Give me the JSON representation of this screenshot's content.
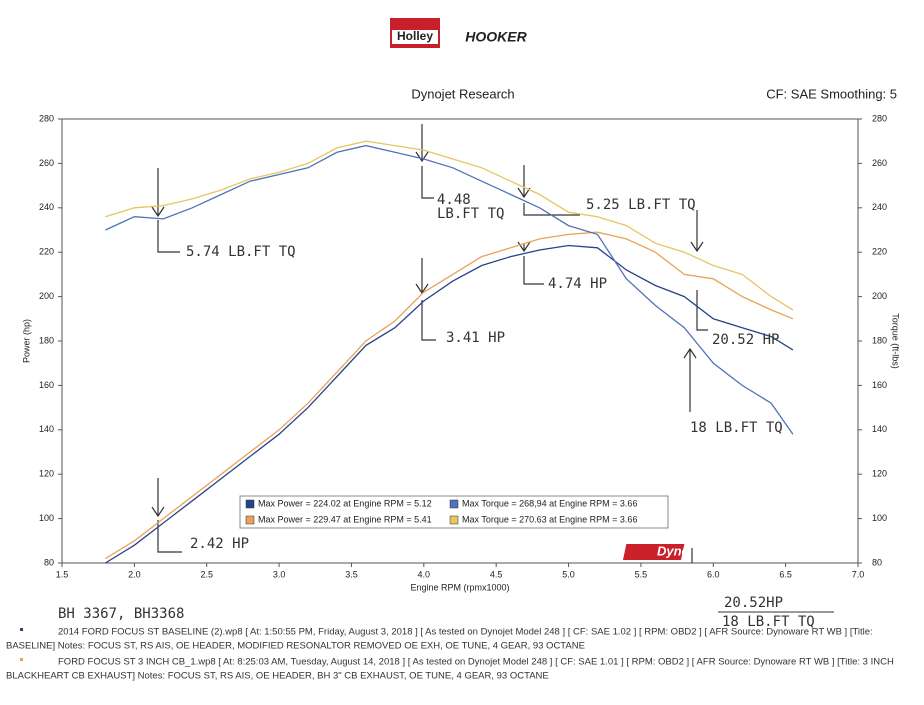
{
  "chart_data": {
    "type": "line",
    "logos": [
      "Holley",
      "HOOKER"
    ],
    "title": "Dynojet Research",
    "subtitle": "CF: SAE Smoothing: 5",
    "x_label": "Engine RPM (rpmx1000)",
    "y_label": "Power (hp)",
    "y2_label": "Torque (ft-lbs)",
    "brand": "Dynojet",
    "x": [
      1.8,
      2.0,
      2.2,
      2.4,
      2.6,
      2.8,
      3.0,
      3.2,
      3.4,
      3.6,
      3.8,
      4.0,
      4.2,
      4.4,
      4.6,
      4.8,
      5.0,
      5.2,
      5.4,
      5.6,
      5.8,
      6.0,
      6.2,
      6.4,
      6.55
    ],
    "series": [
      {
        "name": "Max Power = 224.02 at Engine RPM = 5.12",
        "color": "#26448a",
        "values": [
          80,
          88,
          98,
          108,
          118,
          128,
          138,
          150,
          164,
          178,
          186,
          198,
          207,
          214,
          218,
          221,
          223,
          222,
          212,
          205,
          200,
          190,
          186,
          182,
          176
        ]
      },
      {
        "name": "Max Power = 229.47 at Engine RPM = 5.41",
        "color": "#e9a257",
        "values": [
          82,
          90,
          100,
          110,
          120,
          130,
          140,
          152,
          166,
          180,
          189,
          202,
          210,
          218,
          222,
          226,
          228,
          229,
          226,
          220,
          210,
          208,
          200,
          194,
          190
        ]
      },
      {
        "name": "Max Torque = 268,94 at Engine RPM = 3.66",
        "color": "#4f73b8",
        "axis": "y2",
        "values": [
          230,
          236,
          235,
          240,
          246,
          252,
          255,
          258,
          265,
          268,
          265,
          262,
          258,
          252,
          246,
          240,
          232,
          228,
          208,
          196,
          186,
          170,
          160,
          152,
          138
        ]
      },
      {
        "name": "Max Torque = 270.63 at Engine RPM = 3.66",
        "color": "#e6c65e",
        "axis": "y2",
        "values": [
          236,
          240,
          241,
          244,
          248,
          253,
          256,
          260,
          267,
          270,
          268,
          266,
          262,
          258,
          252,
          246,
          238,
          236,
          232,
          224,
          220,
          214,
          210,
          200,
          194
        ]
      }
    ],
    "xlim": [
      1.5,
      7.0
    ],
    "xticks": [
      1.5,
      {
        "value": 2.0,
        "label": "2.0"
      },
      2.5,
      {
        "value": 3.0,
        "label": "3.0"
      },
      3.5,
      {
        "value": 4.0,
        "label": "4.0"
      },
      4.5,
      {
        "value": 5.0,
        "label": "5.0"
      },
      5.5,
      {
        "value": 6.0,
        "label": "6.0"
      },
      6.5,
      {
        "value": 7.0,
        "label": "7.0"
      }
    ],
    "ylim": [
      80,
      280
    ],
    "yticks": [
      80,
      100,
      120,
      140,
      160,
      180,
      200,
      220,
      240,
      260,
      280
    ],
    "y2lim": [
      80,
      280
    ],
    "y2ticks": [
      80,
      100,
      120,
      140,
      160,
      180,
      200,
      220,
      240,
      260,
      280
    ],
    "grid": false,
    "annotations": [
      "5.74 LB.FT TQ",
      "4.48",
      "LB.FT TQ",
      "5.25 LB.FT TQ",
      "4.74 HP",
      "3.41 HP",
      "2.42 HP",
      "20.52 HP",
      "18 LB.FT TQ"
    ],
    "handwritten_notes": [
      "BH 3367, BH3368",
      "20.52HP",
      "18 LB.FT TQ"
    ],
    "footer_notes": [
      "2014 FORD FOCUS ST BASELINE (2).wp8 [ At: 1:50:55 PM, Friday, August 3, 2018 ] [ As tested on Dynojet Model 248 ] [ CF: SAE 1.02 ] [ RPM: OBD2 ] [ AFR Source: Dynoware RT WB ] [Title:",
      "BASELINE]  Notes: FOCUS ST, RS AIS, OE HEADER, MODIFIED RESONALTOR REMOVED OE EXH, OE TUNE, 4 GEAR, 93 OCTANE",
      "FORD FOCUS ST 3 INCH CB_1.wp8 [ At: 8:25:03 AM, Tuesday, August 14, 2018 ] [ As tested on Dynojet Model 248 ] [ CF: SAE 1.01 ] [ RPM: OBD2 ] [ AFR Source: Dynoware RT WB ] [Title: 3 INCH",
      "BLACKHEART CB EXHAUST]  Notes: FOCUS ST, RS AIS, OE HEADER, BH 3\" CB EXHAUST, OE TUNE, 4 GEAR, 93 OCTANE"
    ]
  }
}
